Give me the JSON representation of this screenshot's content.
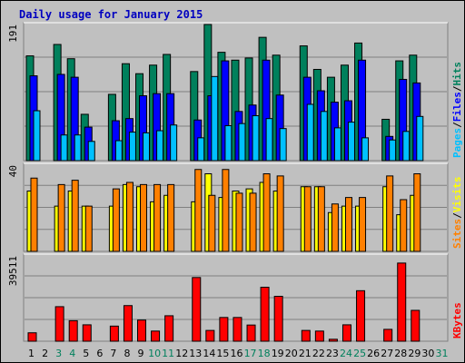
{
  "title": "Daily usage for January 2015",
  "colors": {
    "hits": "#00805c",
    "files": "#0000ff",
    "pages": "#00c0ff",
    "visits": "#ffff00",
    "sites": "#ff8000",
    "kbytes": "#ff0000",
    "weekend": "#00805c",
    "weekday": "#000000"
  },
  "chart_data": [
    {
      "type": "bar",
      "panel": "top",
      "max_label": "191",
      "ylim": [
        0,
        191
      ],
      "legend": [
        "Pages",
        "Files",
        "Hits"
      ],
      "categories": [
        "1",
        "2",
        "3",
        "4",
        "5",
        "6",
        "7",
        "8",
        "9",
        "10",
        "11",
        "12",
        "13",
        "14",
        "15",
        "16",
        "17",
        "18",
        "19",
        "20",
        "21",
        "22",
        "23",
        "24",
        "25",
        "26",
        "27",
        "28",
        "29",
        "30",
        "31"
      ],
      "series": [
        {
          "name": "Hits",
          "values": [
            147,
            0,
            163,
            143,
            65,
            0,
            93,
            136,
            122,
            134,
            149,
            0,
            125,
            191,
            152,
            141,
            144,
            173,
            148,
            0,
            161,
            128,
            117,
            134,
            165,
            0,
            58,
            140,
            148,
            0,
            0
          ]
        },
        {
          "name": "Files",
          "values": [
            119,
            0,
            121,
            117,
            47,
            0,
            56,
            59,
            91,
            94,
            94,
            0,
            57,
            91,
            140,
            69,
            78,
            141,
            92,
            0,
            117,
            98,
            82,
            84,
            141,
            0,
            34,
            114,
            109,
            0,
            0
          ]
        },
        {
          "name": "Pages",
          "values": [
            70,
            0,
            36,
            36,
            27,
            0,
            28,
            40,
            39,
            42,
            50,
            0,
            32,
            118,
            49,
            52,
            63,
            59,
            45,
            0,
            79,
            69,
            46,
            54,
            32,
            0,
            29,
            41,
            62,
            0,
            0
          ]
        }
      ]
    },
    {
      "type": "bar",
      "panel": "middle",
      "max_label": "40",
      "ylim": [
        0,
        40
      ],
      "legend": [
        "Sites",
        "Visits"
      ],
      "categories": [
        "1",
        "2",
        "3",
        "4",
        "5",
        "6",
        "7",
        "8",
        "9",
        "10",
        "11",
        "12",
        "13",
        "14",
        "15",
        "16",
        "17",
        "18",
        "19",
        "20",
        "21",
        "22",
        "23",
        "24",
        "25",
        "26",
        "27",
        "28",
        "29",
        "30",
        "31"
      ],
      "series": [
        {
          "name": "Visits",
          "values": [
            28,
            0,
            21,
            28,
            21,
            0,
            21,
            31,
            30,
            23,
            26,
            0,
            23,
            36,
            25,
            28,
            29,
            32,
            28,
            0,
            30,
            30,
            18,
            21,
            21,
            0,
            30,
            17,
            26,
            0,
            0
          ]
        },
        {
          "name": "Sites",
          "values": [
            34,
            0,
            31,
            33,
            21,
            0,
            29,
            32,
            31,
            31,
            31,
            0,
            38,
            26,
            38,
            27,
            27,
            36,
            35,
            0,
            30,
            30,
            22,
            25,
            25,
            0,
            35,
            24,
            36,
            0,
            0
          ]
        }
      ]
    },
    {
      "type": "bar",
      "panel": "bottom",
      "max_label": "39511",
      "ylim": [
        0,
        39511
      ],
      "legend": [
        "KBytes"
      ],
      "categories": [
        "1",
        "2",
        "3",
        "4",
        "5",
        "6",
        "7",
        "8",
        "9",
        "10",
        "11",
        "12",
        "13",
        "14",
        "15",
        "16",
        "17",
        "18",
        "19",
        "20",
        "21",
        "22",
        "23",
        "24",
        "25",
        "26",
        "27",
        "28",
        "29",
        "30",
        "31"
      ],
      "series": [
        {
          "name": "KBytes",
          "values": [
            3900,
            0,
            16000,
            9500,
            7600,
            0,
            7000,
            16500,
            9800,
            4700,
            11800,
            0,
            29500,
            5000,
            11000,
            11000,
            7500,
            25000,
            20800,
            0,
            5000,
            4700,
            900,
            7600,
            23400,
            0,
            5500,
            36200,
            14300,
            0,
            0
          ]
        }
      ]
    }
  ],
  "days": [
    "1",
    "2",
    "3",
    "4",
    "5",
    "6",
    "7",
    "8",
    "9",
    "10",
    "11",
    "12",
    "13",
    "14",
    "15",
    "16",
    "17",
    "18",
    "19",
    "20",
    "21",
    "22",
    "23",
    "24",
    "25",
    "26",
    "27",
    "28",
    "29",
    "30",
    "31"
  ],
  "weekend_days": [
    "3",
    "4",
    "10",
    "11",
    "17",
    "18",
    "24",
    "25",
    "31"
  ]
}
